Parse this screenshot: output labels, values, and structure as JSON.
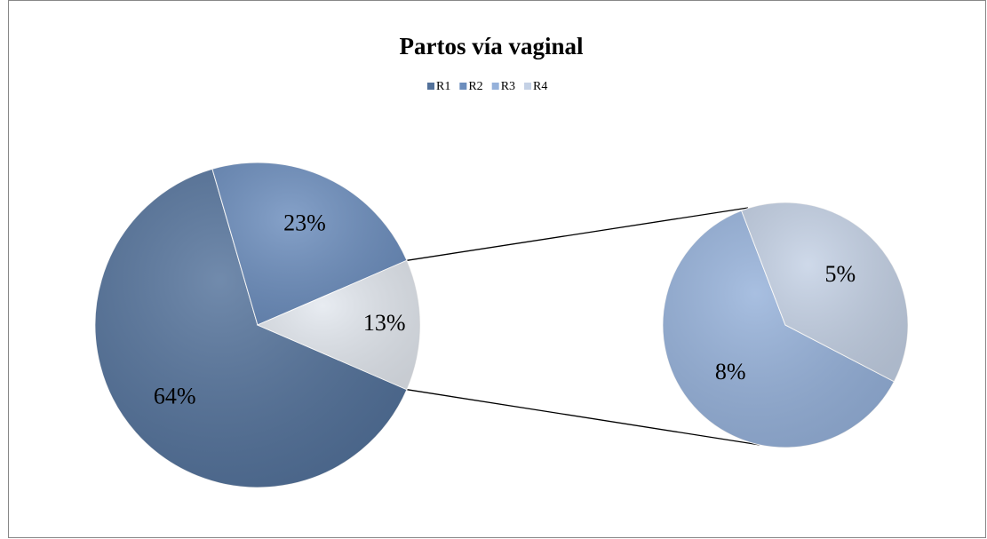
{
  "chart_data": {
    "type": "pie",
    "title": "Partos vía vaginal",
    "categories": [
      "R1",
      "R2",
      "R3",
      "R4"
    ],
    "values": [
      64,
      23,
      8,
      5
    ],
    "value_labels": [
      "64%",
      "23%",
      "8%",
      "5%"
    ],
    "colors": [
      "#52719a",
      "#6b8dbd",
      "#95b1da",
      "#c4d1e5"
    ],
    "secondary_count": 2,
    "other_value": 13,
    "other_label": "13%",
    "other_color": "#e3e8ef",
    "legend": "top"
  }
}
